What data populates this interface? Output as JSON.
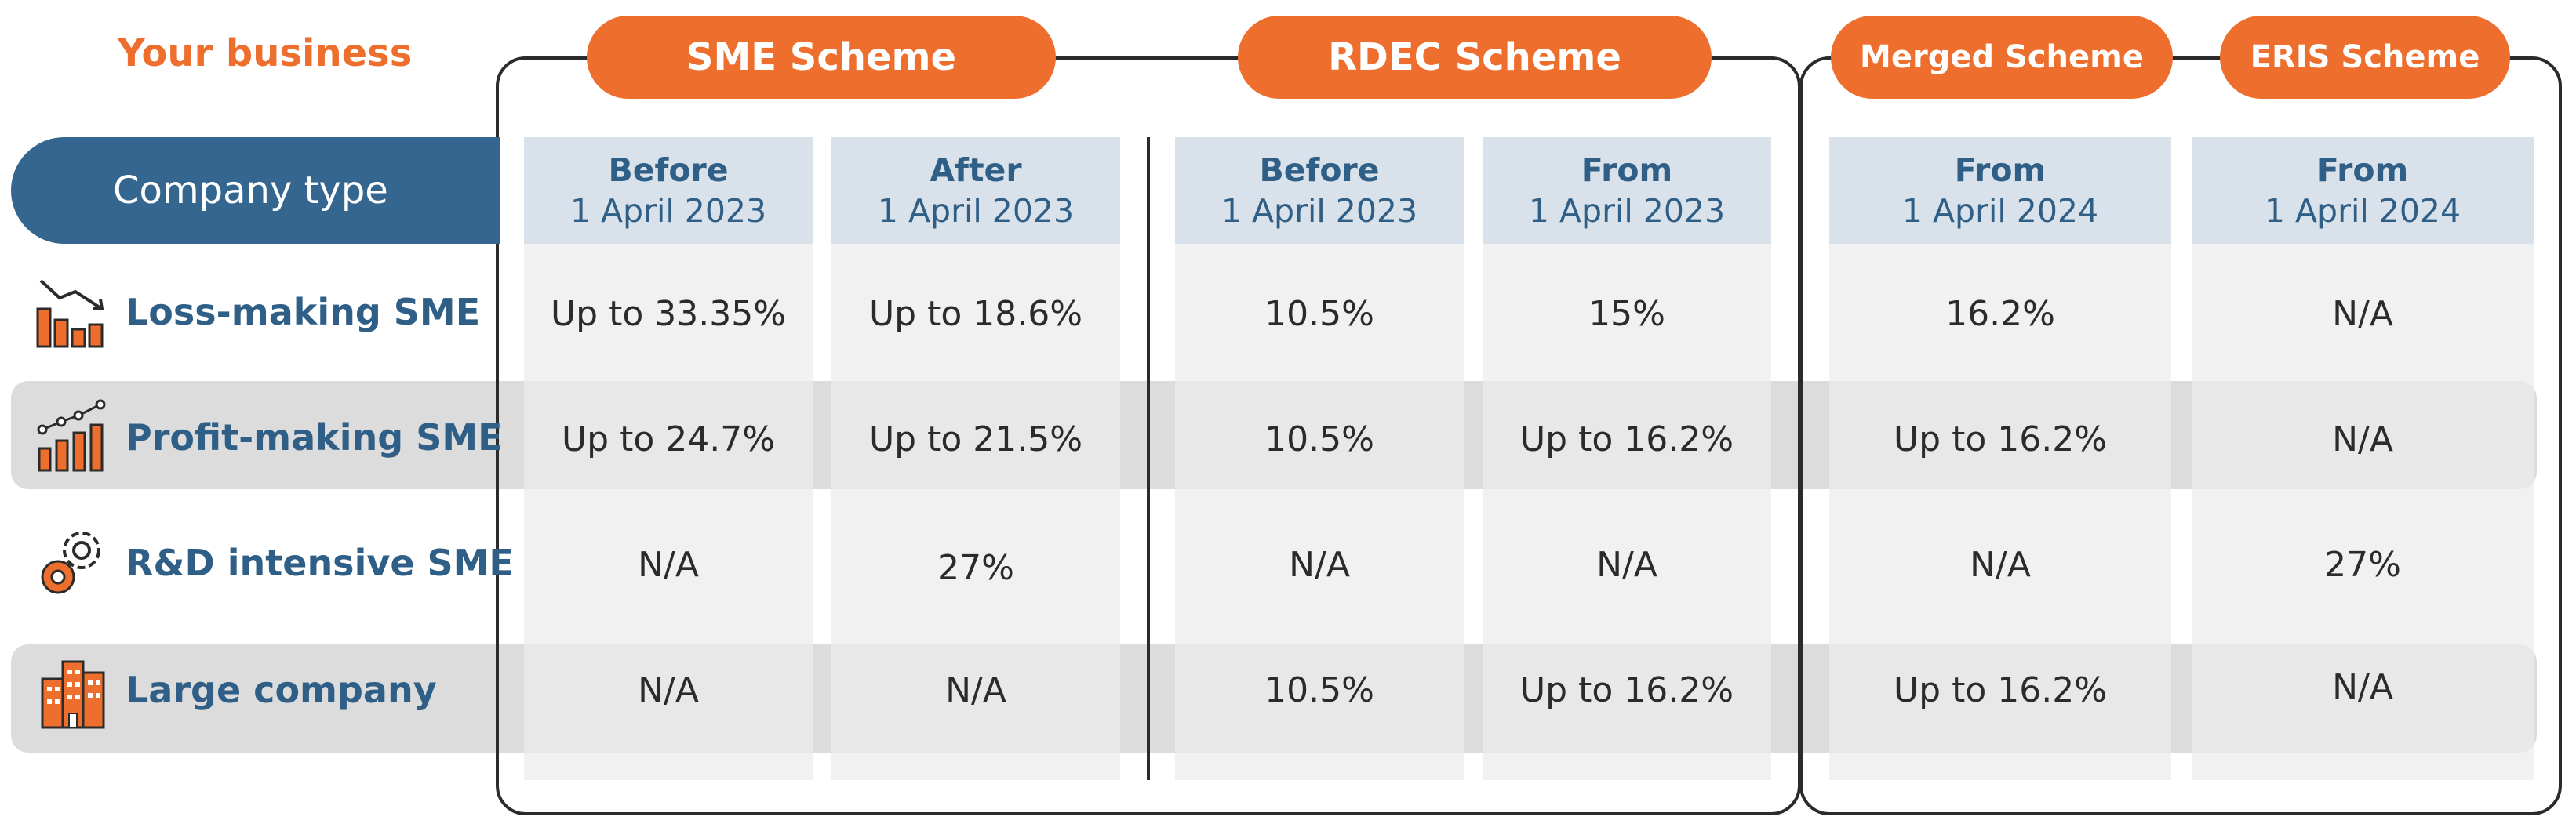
{
  "header": {
    "your_business": "Your business",
    "company_type": "Company type"
  },
  "schemes": [
    {
      "label": "SME Scheme"
    },
    {
      "label": "RDEC Scheme"
    },
    {
      "label": "Merged Scheme"
    },
    {
      "label": "ERIS Scheme"
    }
  ],
  "columns": [
    {
      "line1": "Before",
      "line2": "1 April 2023"
    },
    {
      "line1": "After",
      "line2": "1 April 2023"
    },
    {
      "line1": "Before",
      "line2": "1 April 2023"
    },
    {
      "line1": "From",
      "line2": "1 April 2023"
    },
    {
      "line1": "From",
      "line2": "1 April 2024"
    },
    {
      "line1": "From",
      "line2": "1 April 2024"
    }
  ],
  "rows": [
    {
      "label": "Loss-making SME",
      "icon": "bar-chart-down-icon",
      "values": [
        "Up to 33.35%",
        "Up to 18.6%",
        "10.5%",
        "15%",
        "16.2%",
        "N/A"
      ]
    },
    {
      "label": "Profit-making SME",
      "icon": "bar-chart-up-icon",
      "values": [
        "Up to 24.7%",
        "Up to 21.5%",
        "10.5%",
        "Up to 16.2%",
        "Up to 16.2%",
        "N/A"
      ]
    },
    {
      "label": "R&D intensive SME",
      "icon": "gears-icon",
      "values": [
        "N/A",
        "27%",
        "N/A",
        "N/A",
        "N/A",
        "27%"
      ]
    },
    {
      "label": "Large company",
      "icon": "buildings-icon",
      "values": [
        "N/A",
        "N/A",
        "10.5%",
        "Up to 16.2%",
        "Up to 16.2%",
        "N/A"
      ]
    }
  ],
  "colors": {
    "orange": "#ee6f2d",
    "blue": "#346690",
    "header_bg": "#d9e2ea",
    "cell_bg": "#ececec",
    "band_bg": "#dcdcdc"
  }
}
